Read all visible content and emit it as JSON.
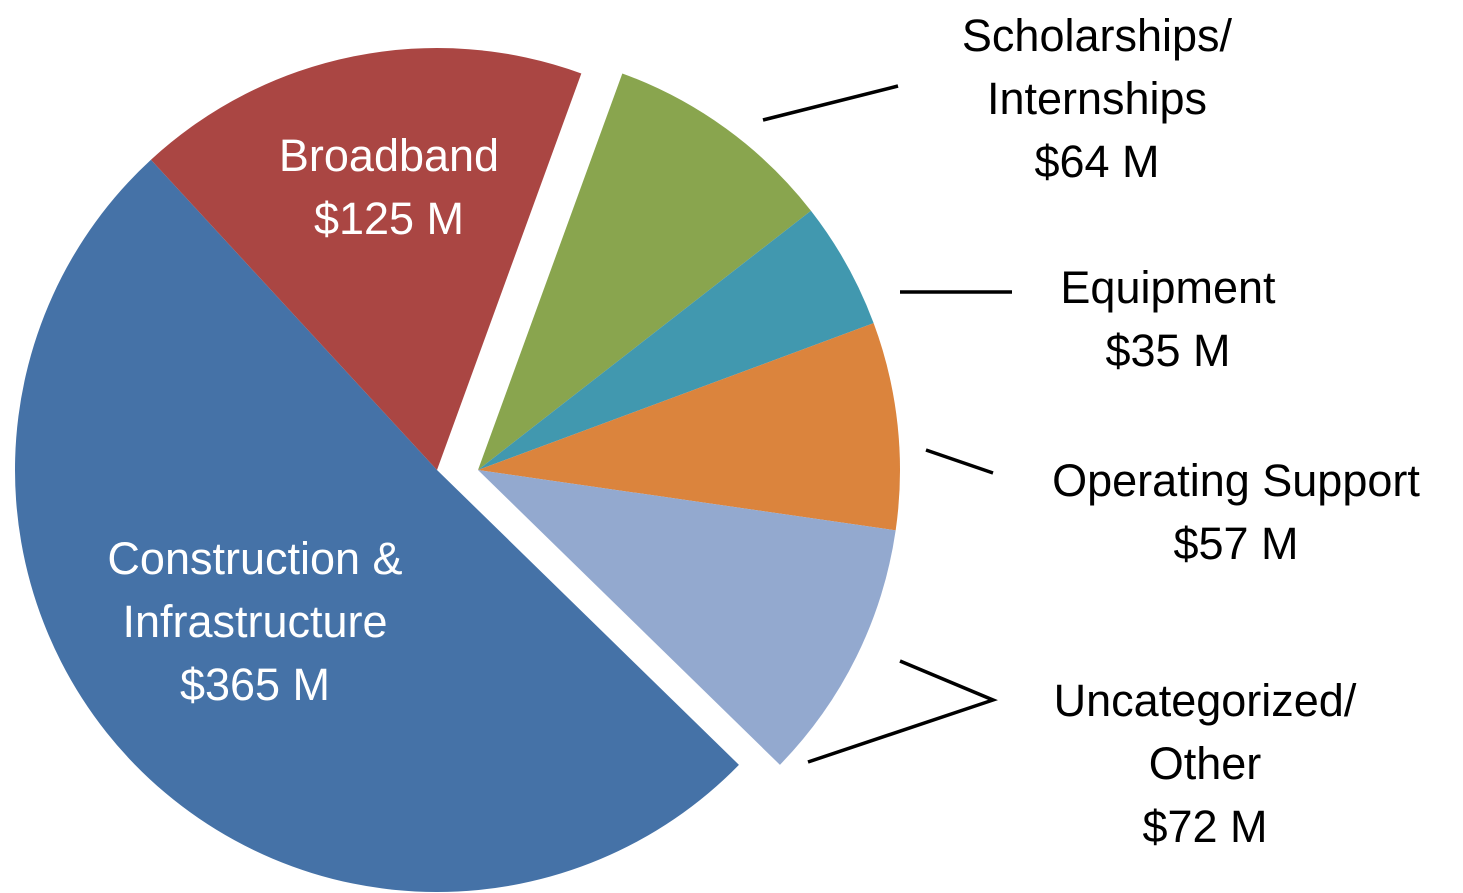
{
  "chart_data": {
    "type": "pie",
    "categories": [
      "Scholarships/ Internships",
      "Equipment",
      "Operating Support",
      "Uncategorized/ Other",
      "Construction & Infrastructure",
      "Broadband"
    ],
    "values": [
      64,
      35,
      57,
      72,
      365,
      125
    ],
    "value_labels": [
      "$64 M",
      "$35 M",
      "$57 M",
      "$72 M",
      "$365 M",
      "$125 M"
    ],
    "colors": [
      "#89a54e",
      "#4198af",
      "#db843d",
      "#93a9cf",
      "#4572a7",
      "#aa4643"
    ]
  }
}
